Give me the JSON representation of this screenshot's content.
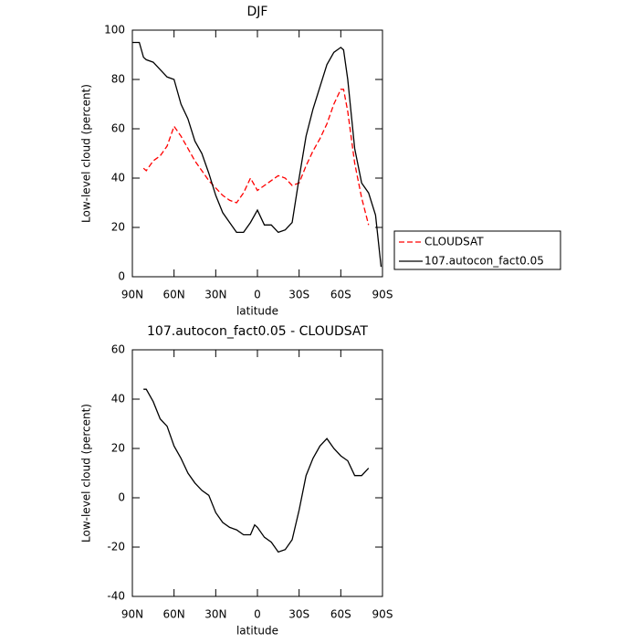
{
  "chart_data": [
    {
      "type": "line",
      "title": "DJF",
      "xlabel": "latitude",
      "ylabel": "Low-level cloud (percent)",
      "xlim": [
        90,
        -90
      ],
      "ylim": [
        0,
        100
      ],
      "xticks": [
        {
          "value": 90,
          "label": "90N"
        },
        {
          "value": 60,
          "label": "60N"
        },
        {
          "value": 30,
          "label": "30N"
        },
        0,
        {
          "value": -30,
          "label": "30S"
        },
        {
          "value": -60,
          "label": "60S"
        },
        {
          "value": -90,
          "label": "90S"
        }
      ],
      "yticks": [
        0,
        20,
        40,
        60,
        80,
        100
      ],
      "legend": "right",
      "series": [
        {
          "name": "CLOUDSAT",
          "color": "#ff0000",
          "dash": true,
          "x": [
            82,
            80,
            75,
            70,
            65,
            60,
            55,
            50,
            45,
            40,
            35,
            30,
            25,
            20,
            15,
            10,
            5,
            0,
            -5,
            -10,
            -15,
            -20,
            -25,
            -30,
            -35,
            -40,
            -45,
            -50,
            -55,
            -60,
            -62,
            -65,
            -70,
            -75,
            -80
          ],
          "values": [
            44,
            43,
            47,
            49,
            53,
            61,
            57,
            52,
            47,
            43,
            39,
            36,
            33,
            31,
            30,
            34,
            40,
            35,
            37,
            39,
            41,
            40,
            37,
            38,
            45,
            51,
            56,
            62,
            70,
            76,
            76,
            67,
            46,
            32,
            21
          ]
        },
        {
          "name": "107.autocon_fact0.05",
          "color": "#000000",
          "dash": false,
          "x": [
            90,
            85,
            82,
            80,
            75,
            70,
            65,
            60,
            55,
            50,
            45,
            40,
            35,
            30,
            25,
            20,
            15,
            10,
            5,
            0,
            -5,
            -10,
            -15,
            -20,
            -25,
            -30,
            -35,
            -40,
            -45,
            -50,
            -55,
            -60,
            -62,
            -65,
            -70,
            -75,
            -80,
            -85,
            -89
          ],
          "values": [
            95,
            95,
            89,
            88,
            87,
            84,
            81,
            80,
            70,
            64,
            55,
            50,
            42,
            33,
            26,
            22,
            18,
            18,
            22,
            27,
            21,
            21,
            18,
            19,
            22,
            40,
            57,
            68,
            77,
            86,
            91,
            93,
            92,
            80,
            52,
            38,
            34,
            25,
            4
          ]
        }
      ]
    },
    {
      "type": "line",
      "title": "107.autocon_fact0.05 - CLOUDSAT",
      "xlabel": "latitude",
      "ylabel": "Low-level cloud (percent)",
      "xlim": [
        90,
        -90
      ],
      "ylim": [
        -40,
        60
      ],
      "xticks": [
        {
          "value": 90,
          "label": "90N"
        },
        {
          "value": 60,
          "label": "60N"
        },
        {
          "value": 30,
          "label": "30N"
        },
        0,
        {
          "value": -30,
          "label": "30S"
        },
        {
          "value": -60,
          "label": "60S"
        },
        {
          "value": -90,
          "label": "90S"
        }
      ],
      "yticks": [
        -40,
        -20,
        0,
        20,
        40,
        60
      ],
      "color": "#000000",
      "x": [
        82,
        80,
        75,
        70,
        65,
        60,
        55,
        50,
        45,
        40,
        35,
        30,
        25,
        20,
        15,
        10,
        5,
        2,
        0,
        -5,
        -10,
        -15,
        -20,
        -25,
        -30,
        -35,
        -40,
        -45,
        -50,
        -55,
        -60,
        -65,
        -70,
        -75,
        -80
      ],
      "values": [
        44,
        44,
        39,
        32,
        29,
        21,
        16,
        10,
        6,
        3,
        1,
        -6,
        -10,
        -12,
        -13,
        -15,
        -15,
        -11,
        -12,
        -16,
        -18,
        -22,
        -21,
        -17,
        -5,
        9,
        16,
        21,
        24,
        20,
        17,
        15,
        9,
        9,
        12
      ]
    }
  ]
}
